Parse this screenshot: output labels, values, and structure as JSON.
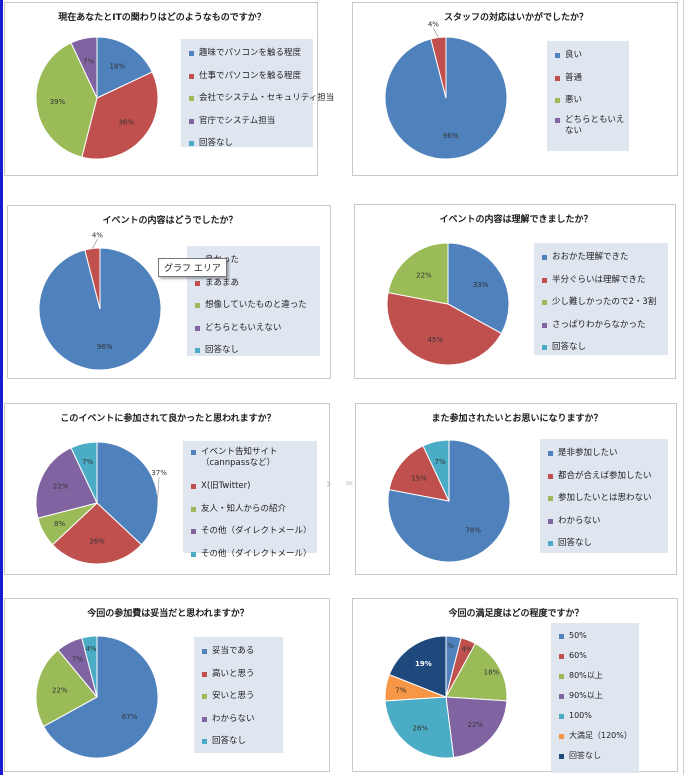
{
  "tooltip": "グラフ エリア",
  "colors": {
    "blue": "#4f81bd",
    "red": "#c0504d",
    "green": "#9bbb59",
    "purple": "#8064a2",
    "cyan": "#4bacc6",
    "orange": "#f79646",
    "navy": "#1f497d"
  },
  "chart_data": [
    {
      "type": "pie",
      "title": "現在あなたとITの関わりはどのようなものですか？",
      "categories": [
        "趣味でパソコンを触る程度",
        "仕事でパソコンを触る程度",
        "会社でシステム・セキュリティ担当",
        "官庁でシステム担当",
        "回答なし"
      ],
      "values": [
        18,
        36,
        39,
        7,
        0
      ],
      "labels": [
        "18%",
        "36%",
        "39%",
        "7%",
        ""
      ],
      "colors": [
        "#4f81bd",
        "#c0504d",
        "#9bbb59",
        "#8064a2",
        "#4bacc6"
      ],
      "legend": "right"
    },
    {
      "type": "pie",
      "title": "スタッフの対応はいかがでしたか？",
      "categories": [
        "良い",
        "普通",
        "悪い",
        "どちらともいえない"
      ],
      "values": [
        96,
        4,
        0,
        0
      ],
      "labels": [
        "96%",
        "4%",
        "",
        ""
      ],
      "colors": [
        "#4f81bd",
        "#c0504d",
        "#9bbb59",
        "#8064a2"
      ],
      "legend": "right"
    },
    {
      "type": "pie",
      "title": "イベントの内容はどうでしたか？",
      "categories": [
        "良かった",
        "まあまあ",
        "想像していたものと違った",
        "どちらともいえない",
        "回答なし"
      ],
      "values": [
        96,
        4,
        0,
        0,
        0
      ],
      "labels": [
        "96%",
        "4%",
        "",
        "",
        ""
      ],
      "colors": [
        "#4f81bd",
        "#c0504d",
        "#9bbb59",
        "#8064a2",
        "#4bacc6"
      ],
      "legend": "right"
    },
    {
      "type": "pie",
      "title": "イベントの内容は理解できましたか？",
      "categories": [
        "おおかた理解できた",
        "半分ぐらいは理解できた",
        "少し難しかったので2・3割",
        "さっぱりわからなかった",
        "回答なし"
      ],
      "values": [
        33,
        45,
        22,
        0,
        0
      ],
      "labels": [
        "33%",
        "45%",
        "22%",
        "",
        ""
      ],
      "colors": [
        "#4f81bd",
        "#c0504d",
        "#9bbb59",
        "#8064a2",
        "#4bacc6"
      ],
      "legend": "right"
    },
    {
      "type": "pie",
      "title": "このイベントに参加されて良かったと思われますか？",
      "categories": [
        "イベント告知サイト（cannpassなど）",
        "X(旧Twitter)",
        "友人・知人からの紹介",
        "その他（ダイレクトメール）",
        "その他（ダイレクトメール）"
      ],
      "values": [
        37,
        26,
        8,
        22,
        7
      ],
      "labels": [
        "37%",
        "26%",
        "8%",
        "22%",
        "7%"
      ],
      "colors": [
        "#4f81bd",
        "#c0504d",
        "#9bbb59",
        "#8064a2",
        "#4bacc6"
      ],
      "legend": "right"
    },
    {
      "type": "pie",
      "title": "また参加されたいとお思いになりますか？",
      "categories": [
        "是非参加したい",
        "都合が合えば参加したい",
        "参加したいとは思わない",
        "わからない",
        "回答なし"
      ],
      "values": [
        78,
        15,
        0,
        0,
        7
      ],
      "labels": [
        "78%",
        "15%",
        "",
        "",
        "7%"
      ],
      "colors": [
        "#4f81bd",
        "#c0504d",
        "#9bbb59",
        "#8064a2",
        "#4bacc6"
      ],
      "legend": "right"
    },
    {
      "type": "pie",
      "title": "今回の参加費は妥当だと思われますか？",
      "categories": [
        "妥当である",
        "高いと思う",
        "安いと思う",
        "わからない",
        "回答なし"
      ],
      "values": [
        67,
        0,
        22,
        7,
        4
      ],
      "labels": [
        "67%",
        "",
        "22%",
        "7%",
        "4%"
      ],
      "colors": [
        "#4f81bd",
        "#c0504d",
        "#9bbb59",
        "#8064a2",
        "#4bacc6"
      ],
      "legend": "right"
    },
    {
      "type": "pie",
      "title": "今回の満足度はどの程度ですか？",
      "categories": [
        "50%",
        "60%",
        "80%以上",
        "90%以上",
        "100%",
        "大満足（120%）",
        "回答なし"
      ],
      "values": [
        4,
        4,
        18,
        22,
        26,
        7,
        19
      ],
      "labels": [
        "4%",
        "4%",
        "18%",
        "22%",
        "26%",
        "7%",
        "19%"
      ],
      "colors": [
        "#4f81bd",
        "#c0504d",
        "#9bbb59",
        "#8064a2",
        "#4bacc6",
        "#f79646",
        "#1f497d"
      ],
      "legend": "right"
    }
  ]
}
